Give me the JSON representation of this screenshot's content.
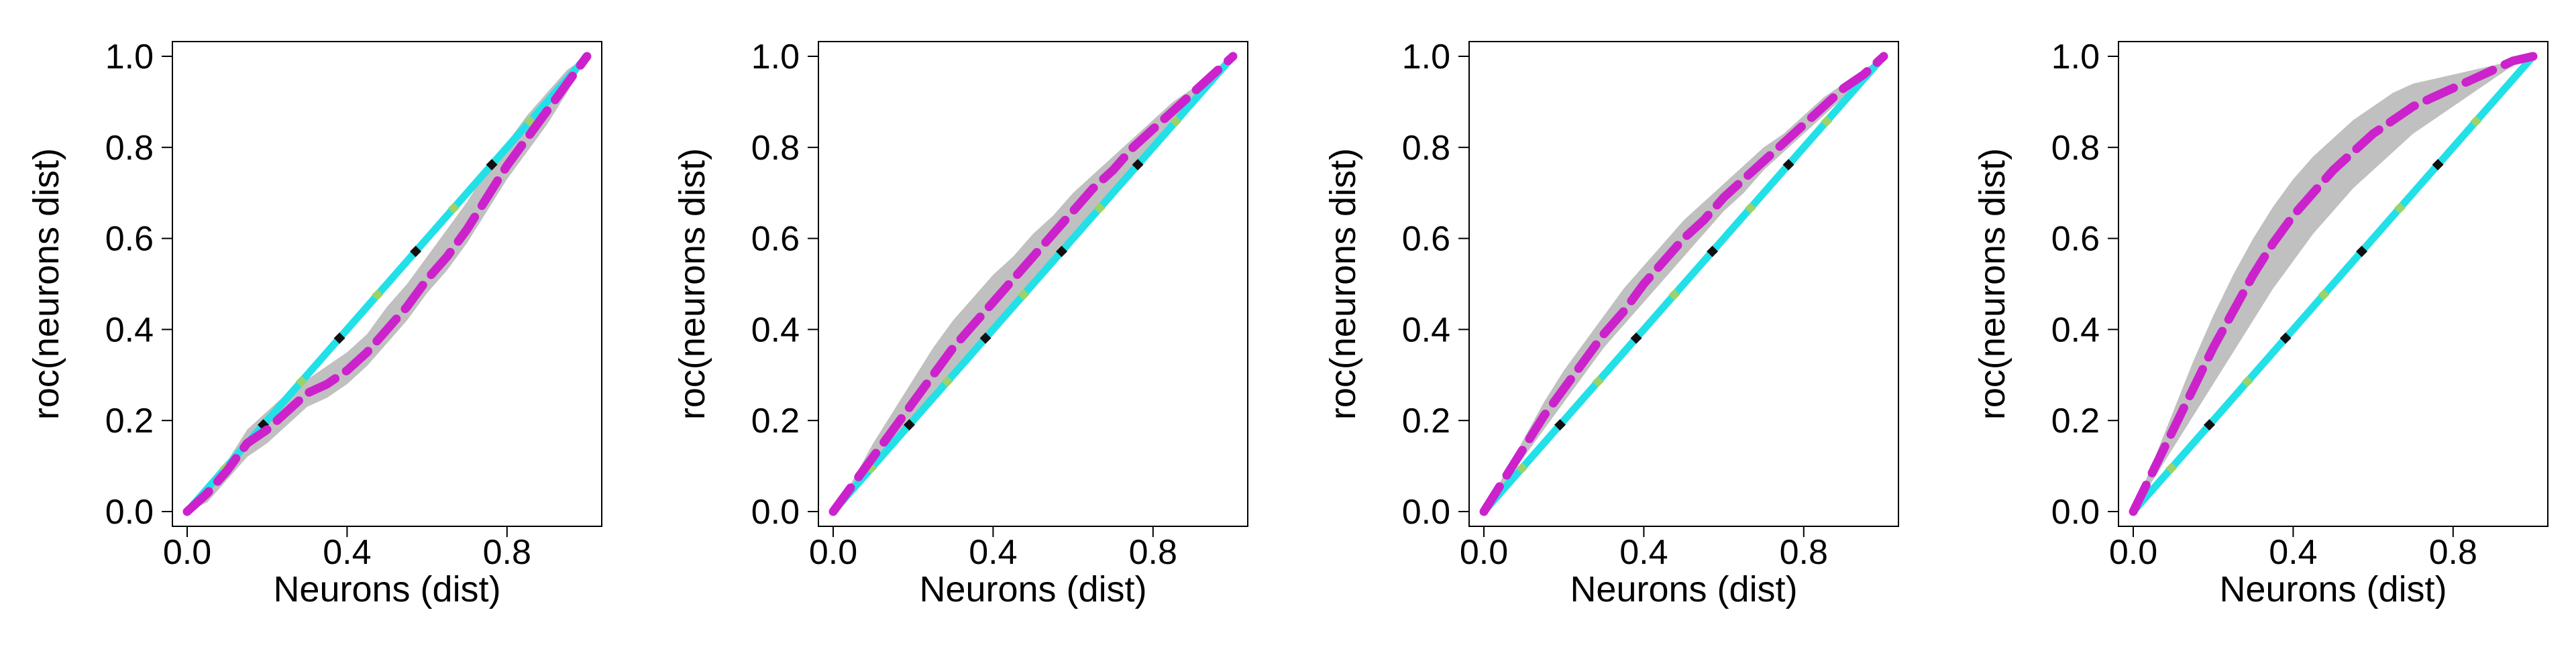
{
  "colors": {
    "band": "#c0c0c0",
    "diagonal": "#22e0e8",
    "roc": "#cc22cc",
    "marker_dark": "#111111",
    "marker_light": "#9ad36a"
  },
  "chart_data": [
    {
      "type": "line",
      "xlabel": "Neurons (dist)",
      "ylabel": "roc(neurons dist)",
      "xlim": [
        0,
        1
      ],
      "ylim": [
        0,
        1
      ],
      "xticks": [
        "0.0",
        "0.4",
        "0.8"
      ],
      "yticks": [
        "0.0",
        "0.2",
        "0.4",
        "0.6",
        "0.8",
        "1.0"
      ],
      "grid": false,
      "series": [
        {
          "style": "diagonal",
          "x": [
            0,
            1
          ],
          "y": [
            0,
            1
          ]
        },
        {
          "style": "roc-mean-dashed",
          "x": [
            0,
            0.05,
            0.1,
            0.15,
            0.2,
            0.25,
            0.3,
            0.35,
            0.4,
            0.45,
            0.5,
            0.55,
            0.6,
            0.65,
            0.7,
            0.75,
            0.8,
            0.85,
            0.9,
            0.95,
            1
          ],
          "y": [
            0,
            0.04,
            0.09,
            0.15,
            0.18,
            0.22,
            0.26,
            0.28,
            0.31,
            0.35,
            0.4,
            0.45,
            0.51,
            0.56,
            0.62,
            0.69,
            0.76,
            0.82,
            0.88,
            0.94,
            1
          ]
        },
        {
          "style": "roc-band",
          "x": [
            0,
            0.05,
            0.1,
            0.15,
            0.2,
            0.25,
            0.3,
            0.35,
            0.4,
            0.45,
            0.5,
            0.55,
            0.6,
            0.65,
            0.7,
            0.75,
            0.8,
            0.85,
            0.9,
            0.95,
            1
          ],
          "lower": [
            0,
            0.02,
            0.07,
            0.12,
            0.15,
            0.19,
            0.23,
            0.25,
            0.28,
            0.32,
            0.37,
            0.42,
            0.48,
            0.53,
            0.59,
            0.66,
            0.73,
            0.79,
            0.85,
            0.92,
            1
          ],
          "upper": [
            0,
            0.06,
            0.11,
            0.18,
            0.22,
            0.26,
            0.29,
            0.32,
            0.35,
            0.39,
            0.45,
            0.5,
            0.56,
            0.62,
            0.68,
            0.75,
            0.81,
            0.87,
            0.92,
            0.97,
            1
          ]
        }
      ]
    },
    {
      "type": "line",
      "xlabel": "Neurons (dist)",
      "ylabel": "roc(neurons dist)",
      "xlim": [
        0,
        1
      ],
      "ylim": [
        0,
        1
      ],
      "xticks": [
        "0.0",
        "0.4",
        "0.8"
      ],
      "yticks": [
        "0.0",
        "0.2",
        "0.4",
        "0.6",
        "0.8",
        "1.0"
      ],
      "grid": false,
      "series": [
        {
          "style": "diagonal",
          "x": [
            0,
            1
          ],
          "y": [
            0,
            1
          ]
        },
        {
          "style": "roc-mean-dashed",
          "x": [
            0,
            0.05,
            0.1,
            0.15,
            0.2,
            0.25,
            0.3,
            0.35,
            0.4,
            0.45,
            0.5,
            0.55,
            0.6,
            0.65,
            0.7,
            0.75,
            0.8,
            0.85,
            0.9,
            0.95,
            1
          ],
          "y": [
            0,
            0.06,
            0.12,
            0.18,
            0.24,
            0.3,
            0.36,
            0.41,
            0.46,
            0.51,
            0.56,
            0.61,
            0.66,
            0.71,
            0.75,
            0.8,
            0.84,
            0.88,
            0.92,
            0.96,
            1
          ]
        },
        {
          "style": "roc-band",
          "x": [
            0,
            0.05,
            0.1,
            0.15,
            0.2,
            0.25,
            0.3,
            0.35,
            0.4,
            0.45,
            0.5,
            0.55,
            0.6,
            0.65,
            0.7,
            0.75,
            0.8,
            0.85,
            0.9,
            0.95,
            1
          ],
          "lower": [
            0,
            0.05,
            0.1,
            0.16,
            0.21,
            0.26,
            0.31,
            0.36,
            0.41,
            0.46,
            0.51,
            0.56,
            0.61,
            0.66,
            0.71,
            0.76,
            0.8,
            0.85,
            0.89,
            0.94,
            1
          ],
          "upper": [
            0,
            0.07,
            0.15,
            0.22,
            0.29,
            0.36,
            0.42,
            0.47,
            0.52,
            0.56,
            0.61,
            0.65,
            0.7,
            0.74,
            0.78,
            0.82,
            0.86,
            0.9,
            0.93,
            0.97,
            1
          ]
        }
      ]
    },
    {
      "type": "line",
      "xlabel": "Neurons (dist)",
      "ylabel": "roc(neurons dist)",
      "xlim": [
        0,
        1
      ],
      "ylim": [
        0,
        1
      ],
      "xticks": [
        "0.0",
        "0.4",
        "0.8"
      ],
      "yticks": [
        "0.0",
        "0.2",
        "0.4",
        "0.6",
        "0.8",
        "1.0"
      ],
      "grid": false,
      "series": [
        {
          "style": "diagonal",
          "x": [
            0,
            1
          ],
          "y": [
            0,
            1
          ]
        },
        {
          "style": "roc-mean-dashed",
          "x": [
            0,
            0.05,
            0.1,
            0.15,
            0.2,
            0.25,
            0.3,
            0.35,
            0.4,
            0.45,
            0.5,
            0.55,
            0.6,
            0.65,
            0.7,
            0.75,
            0.8,
            0.85,
            0.9,
            0.95,
            1
          ],
          "y": [
            0,
            0.07,
            0.14,
            0.21,
            0.27,
            0.33,
            0.39,
            0.44,
            0.5,
            0.55,
            0.6,
            0.64,
            0.69,
            0.73,
            0.77,
            0.81,
            0.85,
            0.89,
            0.93,
            0.96,
            1
          ]
        },
        {
          "style": "roc-band",
          "x": [
            0,
            0.05,
            0.1,
            0.15,
            0.2,
            0.25,
            0.3,
            0.35,
            0.4,
            0.45,
            0.5,
            0.55,
            0.6,
            0.65,
            0.7,
            0.75,
            0.8,
            0.85,
            0.9,
            0.95,
            1
          ],
          "lower": [
            0,
            0.06,
            0.12,
            0.18,
            0.24,
            0.3,
            0.36,
            0.41,
            0.46,
            0.51,
            0.56,
            0.61,
            0.66,
            0.7,
            0.75,
            0.79,
            0.83,
            0.87,
            0.91,
            0.95,
            1
          ],
          "upper": [
            0,
            0.08,
            0.16,
            0.24,
            0.31,
            0.37,
            0.43,
            0.49,
            0.54,
            0.59,
            0.64,
            0.68,
            0.72,
            0.76,
            0.8,
            0.83,
            0.87,
            0.91,
            0.94,
            0.97,
            1
          ]
        }
      ]
    },
    {
      "type": "line",
      "xlabel": "Neurons (dist)",
      "ylabel": "roc(neurons dist)",
      "xlim": [
        0,
        1
      ],
      "ylim": [
        0,
        1
      ],
      "xticks": [
        "0.0",
        "0.4",
        "0.8"
      ],
      "yticks": [
        "0.0",
        "0.2",
        "0.4",
        "0.6",
        "0.8",
        "1.0"
      ],
      "grid": false,
      "series": [
        {
          "style": "diagonal",
          "x": [
            0,
            1
          ],
          "y": [
            0,
            1
          ]
        },
        {
          "style": "roc-mean-dashed",
          "x": [
            0,
            0.05,
            0.1,
            0.15,
            0.2,
            0.25,
            0.3,
            0.35,
            0.4,
            0.45,
            0.5,
            0.55,
            0.6,
            0.65,
            0.7,
            0.75,
            0.8,
            0.85,
            0.9,
            0.95,
            1
          ],
          "y": [
            0,
            0.09,
            0.18,
            0.27,
            0.36,
            0.44,
            0.52,
            0.59,
            0.65,
            0.7,
            0.75,
            0.79,
            0.83,
            0.86,
            0.89,
            0.91,
            0.93,
            0.95,
            0.97,
            0.99,
            1
          ]
        },
        {
          "style": "roc-band",
          "x": [
            0,
            0.05,
            0.1,
            0.15,
            0.2,
            0.25,
            0.3,
            0.35,
            0.4,
            0.45,
            0.5,
            0.55,
            0.6,
            0.65,
            0.7,
            0.75,
            0.8,
            0.85,
            0.9,
            0.95,
            1
          ],
          "lower": [
            0,
            0.07,
            0.14,
            0.21,
            0.28,
            0.35,
            0.42,
            0.49,
            0.55,
            0.61,
            0.66,
            0.71,
            0.75,
            0.79,
            0.83,
            0.86,
            0.89,
            0.92,
            0.95,
            0.98,
            1
          ],
          "upper": [
            0,
            0.11,
            0.22,
            0.33,
            0.43,
            0.52,
            0.6,
            0.67,
            0.73,
            0.78,
            0.82,
            0.86,
            0.89,
            0.92,
            0.94,
            0.95,
            0.96,
            0.97,
            0.98,
            0.99,
            1
          ]
        }
      ]
    }
  ]
}
